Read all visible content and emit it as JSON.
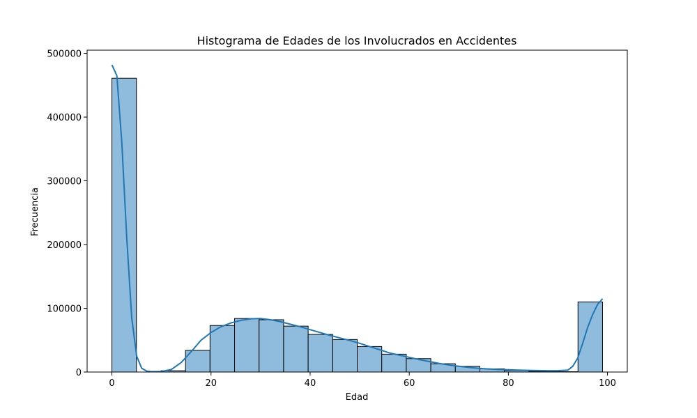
{
  "chart_data": {
    "type": "histogram",
    "title": "Histograma de Edades de los Involucrados en Accidentes",
    "xlabel": "Edad",
    "ylabel": "Frecuencia",
    "xlim": [
      -5,
      104
    ],
    "ylim": [
      0,
      505000
    ],
    "xticks": [
      0,
      20,
      40,
      60,
      80,
      100
    ],
    "xtick_labels": [
      "0",
      "20",
      "40",
      "60",
      "80",
      "100"
    ],
    "yticks": [
      0,
      100000,
      200000,
      300000,
      400000,
      500000
    ],
    "ytick_labels": [
      "0",
      "100000",
      "200000",
      "300000",
      "400000",
      "500000"
    ],
    "bins": [
      {
        "x0": 0,
        "x1": 4.95,
        "count": 461000
      },
      {
        "x0": 9.9,
        "x1": 14.85,
        "count": 2000
      },
      {
        "x0": 14.85,
        "x1": 19.8,
        "count": 34000
      },
      {
        "x0": 19.8,
        "x1": 24.75,
        "count": 73000
      },
      {
        "x0": 24.75,
        "x1": 29.7,
        "count": 84000
      },
      {
        "x0": 29.7,
        "x1": 34.65,
        "count": 82000
      },
      {
        "x0": 34.65,
        "x1": 39.6,
        "count": 72000
      },
      {
        "x0": 39.6,
        "x1": 44.55,
        "count": 59000
      },
      {
        "x0": 44.55,
        "x1": 49.5,
        "count": 51000
      },
      {
        "x0": 49.5,
        "x1": 54.45,
        "count": 40000
      },
      {
        "x0": 54.45,
        "x1": 59.4,
        "count": 28000
      },
      {
        "x0": 59.4,
        "x1": 64.35,
        "count": 21000
      },
      {
        "x0": 64.35,
        "x1": 69.3,
        "count": 13000
      },
      {
        "x0": 69.3,
        "x1": 74.25,
        "count": 9000
      },
      {
        "x0": 74.25,
        "x1": 79.2,
        "count": 5000
      },
      {
        "x0": 79.2,
        "x1": 84.15,
        "count": 2500
      },
      {
        "x0": 84.15,
        "x1": 89.1,
        "count": 1200
      },
      {
        "x0": 89.1,
        "x1": 94.05,
        "count": 500
      },
      {
        "x0": 94.05,
        "x1": 99,
        "count": 110000
      }
    ],
    "kde": {
      "x": [
        0,
        1,
        2,
        3,
        4,
        5,
        6,
        7,
        8,
        10,
        12,
        14,
        16,
        18,
        20,
        22,
        24,
        26,
        28,
        30,
        32,
        34,
        36,
        38,
        40,
        42,
        44,
        46,
        48,
        50,
        52,
        54,
        56,
        58,
        60,
        62,
        64,
        66,
        68,
        70,
        72,
        74,
        76,
        78,
        80,
        82,
        84,
        86,
        88,
        90,
        92,
        93,
        94,
        95,
        96,
        97,
        98,
        99
      ],
      "y": [
        482000,
        465000,
        360000,
        210000,
        85000,
        25000,
        6000,
        1500,
        500,
        800,
        4000,
        15000,
        32000,
        50000,
        62000,
        71000,
        77000,
        81000,
        83500,
        84000,
        82000,
        79000,
        75000,
        71000,
        66500,
        62000,
        57500,
        53500,
        49500,
        45000,
        40000,
        35000,
        30000,
        26500,
        23000,
        19500,
        16500,
        13500,
        11000,
        9000,
        7200,
        5800,
        4800,
        4000,
        3500,
        3000,
        2600,
        2300,
        2100,
        2000,
        3000,
        9000,
        22000,
        45000,
        70000,
        90000,
        106000,
        115000
      ]
    },
    "colors": {
      "bar_fill": "#8fbbdc",
      "bar_edge": "#000000",
      "kde_line": "#1f77b4"
    },
    "grid": false
  }
}
